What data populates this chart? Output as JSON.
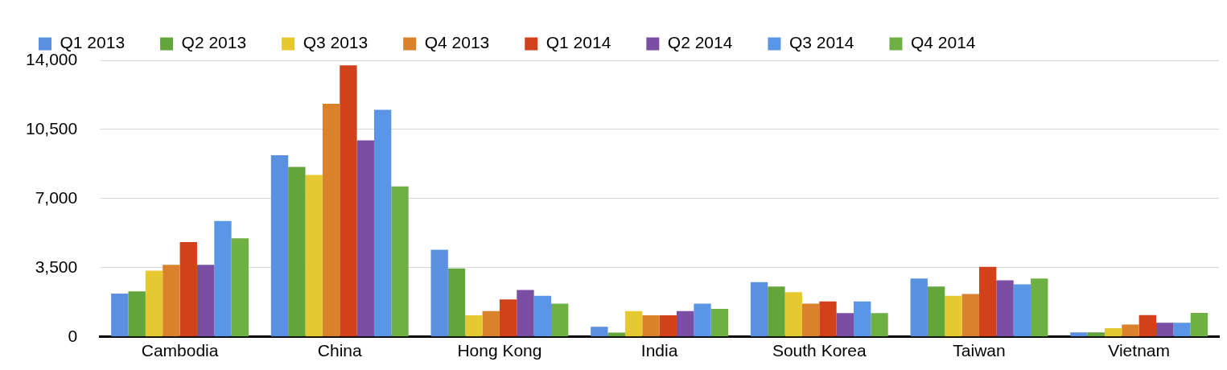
{
  "chart_data": {
    "type": "bar",
    "categories": [
      "Cambodia",
      "China",
      "Hong Kong",
      "India",
      "South Korea",
      "Taiwan",
      "Vietnam"
    ],
    "series": [
      {
        "name": "Q1 2013",
        "color": "#5b8fe0",
        "values": [
          2190,
          9190,
          4410,
          510,
          2770,
          2950,
          230
        ]
      },
      {
        "name": "Q2 2013",
        "color": "#63a53a",
        "values": [
          2300,
          8600,
          3460,
          220,
          2550,
          2550,
          230
        ]
      },
      {
        "name": "Q3 2013",
        "color": "#e6c830",
        "values": [
          3350,
          8200,
          1090,
          1310,
          2260,
          2080,
          440
        ]
      },
      {
        "name": "Q4 2013",
        "color": "#d9822b",
        "values": [
          3650,
          11800,
          1310,
          1090,
          1680,
          2170,
          620
        ]
      },
      {
        "name": "Q1 2014",
        "color": "#d0411c",
        "values": [
          4800,
          13750,
          1900,
          1090,
          1790,
          3540,
          1100
        ]
      },
      {
        "name": "Q2 2014",
        "color": "#7a4fa3",
        "values": [
          3650,
          9950,
          2370,
          1310,
          1200,
          2860,
          710
        ]
      },
      {
        "name": "Q3 2014",
        "color": "#5b96e6",
        "values": [
          5870,
          11500,
          2080,
          1680,
          1790,
          2660,
          710
        ]
      },
      {
        "name": "Q4 2014",
        "color": "#6fb044",
        "values": [
          4990,
          7620,
          1680,
          1420,
          1200,
          2950,
          1210
        ]
      }
    ],
    "ylim": [
      0,
      14000
    ],
    "yticks": [
      {
        "value": 0,
        "label": "0"
      },
      {
        "value": 3500,
        "label": "3,500"
      },
      {
        "value": 7000,
        "label": "7,000"
      },
      {
        "value": 10500,
        "label": "10,500"
      },
      {
        "value": 14000,
        "label": "14,000"
      }
    ],
    "grid": "y",
    "legend": "top"
  }
}
